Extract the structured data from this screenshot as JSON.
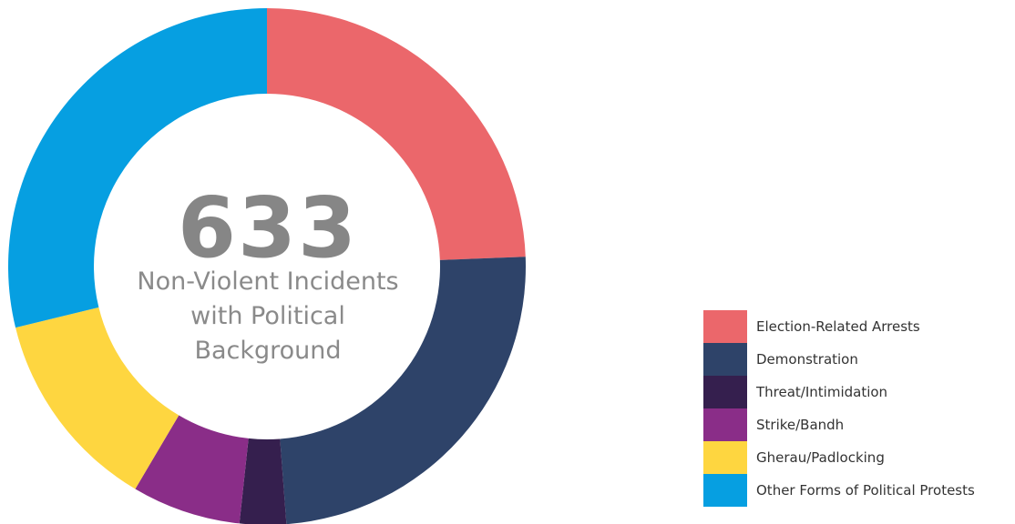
{
  "chart_data": {
    "type": "pie",
    "total_value": "633",
    "total_caption": "Non-Violent Incidents with Political Background",
    "categories": [
      "Election-Related Arrests",
      "Demonstration",
      "Threat/Intimidation",
      "Strike/Bandh",
      "Gherau/Padlocking",
      "Other Forms of Political Protests"
    ],
    "values": [
      24.4,
      24.4,
      2.9,
      6.8,
      12.7,
      28.8
    ],
    "value_unit": "percent",
    "colors": [
      "#EB676B",
      "#2E4369",
      "#351F4E",
      "#8A2D88",
      "#FED640",
      "#069FE1"
    ],
    "legend_placement": "right"
  }
}
